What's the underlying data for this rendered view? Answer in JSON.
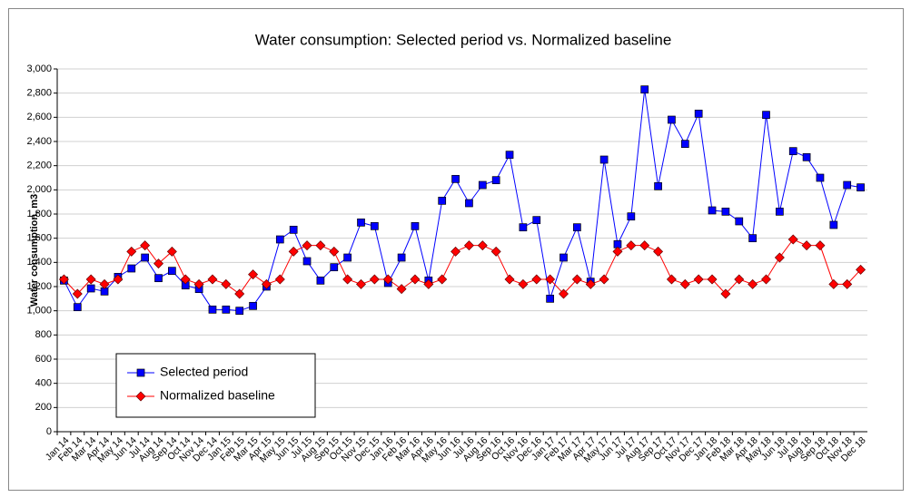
{
  "chart_data": {
    "type": "line",
    "title": "Water consumption: Selected period vs. Normalized baseline",
    "y_label": "Water consumption, m3",
    "categories": [
      "Jan 14",
      "Feb 14",
      "Mar 14",
      "Apr 14",
      "May 14",
      "Jun 14",
      "Jul 14",
      "Aug 14",
      "Sep 14",
      "Oct 14",
      "Nov 14",
      "Dec 14",
      "Jan 15",
      "Feb 15",
      "Mar 15",
      "Apr 15",
      "May 15",
      "Jun 15",
      "Jul 15",
      "Aug 15",
      "Sep 15",
      "Oct 15",
      "Nov 15",
      "Dec 15",
      "Jan 16",
      "Feb 16",
      "Mar 16",
      "Apr 16",
      "May 16",
      "Jun 16",
      "Jul 16",
      "Aug 16",
      "Sep 16",
      "Oct 16",
      "Nov 16",
      "Dec 16",
      "Jan 17",
      "Feb 17",
      "Mar 17",
      "Apr 17",
      "May 17",
      "Jun 17",
      "Jul 17",
      "Aug 17",
      "Sep 17",
      "Oct 17",
      "Nov 17",
      "Dec 17",
      "Jan 18",
      "Feb 18",
      "Mar 18",
      "Apr 18",
      "May 18",
      "Jun 18",
      "Jul 18",
      "Aug 18",
      "Sep 18",
      "Oct 18",
      "Nov 18",
      "Dec 18"
    ],
    "series": [
      {
        "name": "Selected period",
        "color": "#0000ff",
        "marker": "square",
        "values": [
          1250,
          1030,
          1185,
          1160,
          1280,
          1350,
          1440,
          1270,
          1330,
          1210,
          1180,
          1010,
          1010,
          1000,
          1040,
          1200,
          1590,
          1670,
          1410,
          1250,
          1360,
          1440,
          1730,
          1700,
          1230,
          1440,
          1700,
          1250,
          1910,
          2090,
          1890,
          2040,
          2080,
          2290,
          1690,
          1750,
          1100,
          1440,
          1690,
          1240,
          2250,
          1550,
          1780,
          2830,
          2030,
          2580,
          2380,
          2630,
          1830,
          1820,
          1740,
          1600,
          2620,
          1820,
          2320,
          2270,
          2100,
          1710,
          2040,
          2020
        ]
      },
      {
        "name": "Normalized baseline",
        "color": "#ff0000",
        "marker": "diamond",
        "values": [
          1260,
          1140,
          1260,
          1220,
          1260,
          1490,
          1540,
          1390,
          1490,
          1260,
          1220,
          1260,
          1220,
          1140,
          1300,
          1220,
          1260,
          1490,
          1540,
          1540,
          1490,
          1260,
          1220,
          1260,
          1260,
          1180,
          1260,
          1220,
          1260,
          1490,
          1540,
          1540,
          1490,
          1260,
          1220,
          1260,
          1260,
          1140,
          1260,
          1220,
          1260,
          1490,
          1540,
          1540,
          1490,
          1260,
          1220,
          1260,
          1260,
          1140,
          1260,
          1220,
          1260,
          1440,
          1590,
          1540,
          1540,
          1220,
          1220,
          1340
        ]
      }
    ],
    "ylim": [
      0,
      3000
    ],
    "yticks": [
      0,
      200,
      400,
      600,
      800,
      {
        "value": 1000,
        "label": "1,000"
      },
      {
        "value": 1200,
        "label": "1,200"
      },
      {
        "value": 1400,
        "label": "1,400"
      },
      {
        "value": 1600,
        "label": "1,600"
      },
      {
        "value": 1800,
        "label": "1,800"
      },
      {
        "value": 2000,
        "label": "2,000"
      },
      {
        "value": 2200,
        "label": "2,200"
      },
      {
        "value": 2400,
        "label": "2,400"
      },
      {
        "value": 2600,
        "label": "2,600"
      },
      {
        "value": 2800,
        "label": "2,800"
      },
      {
        "value": 3000,
        "label": "3,000"
      }
    ],
    "grid": true,
    "legend": "lower-left"
  }
}
